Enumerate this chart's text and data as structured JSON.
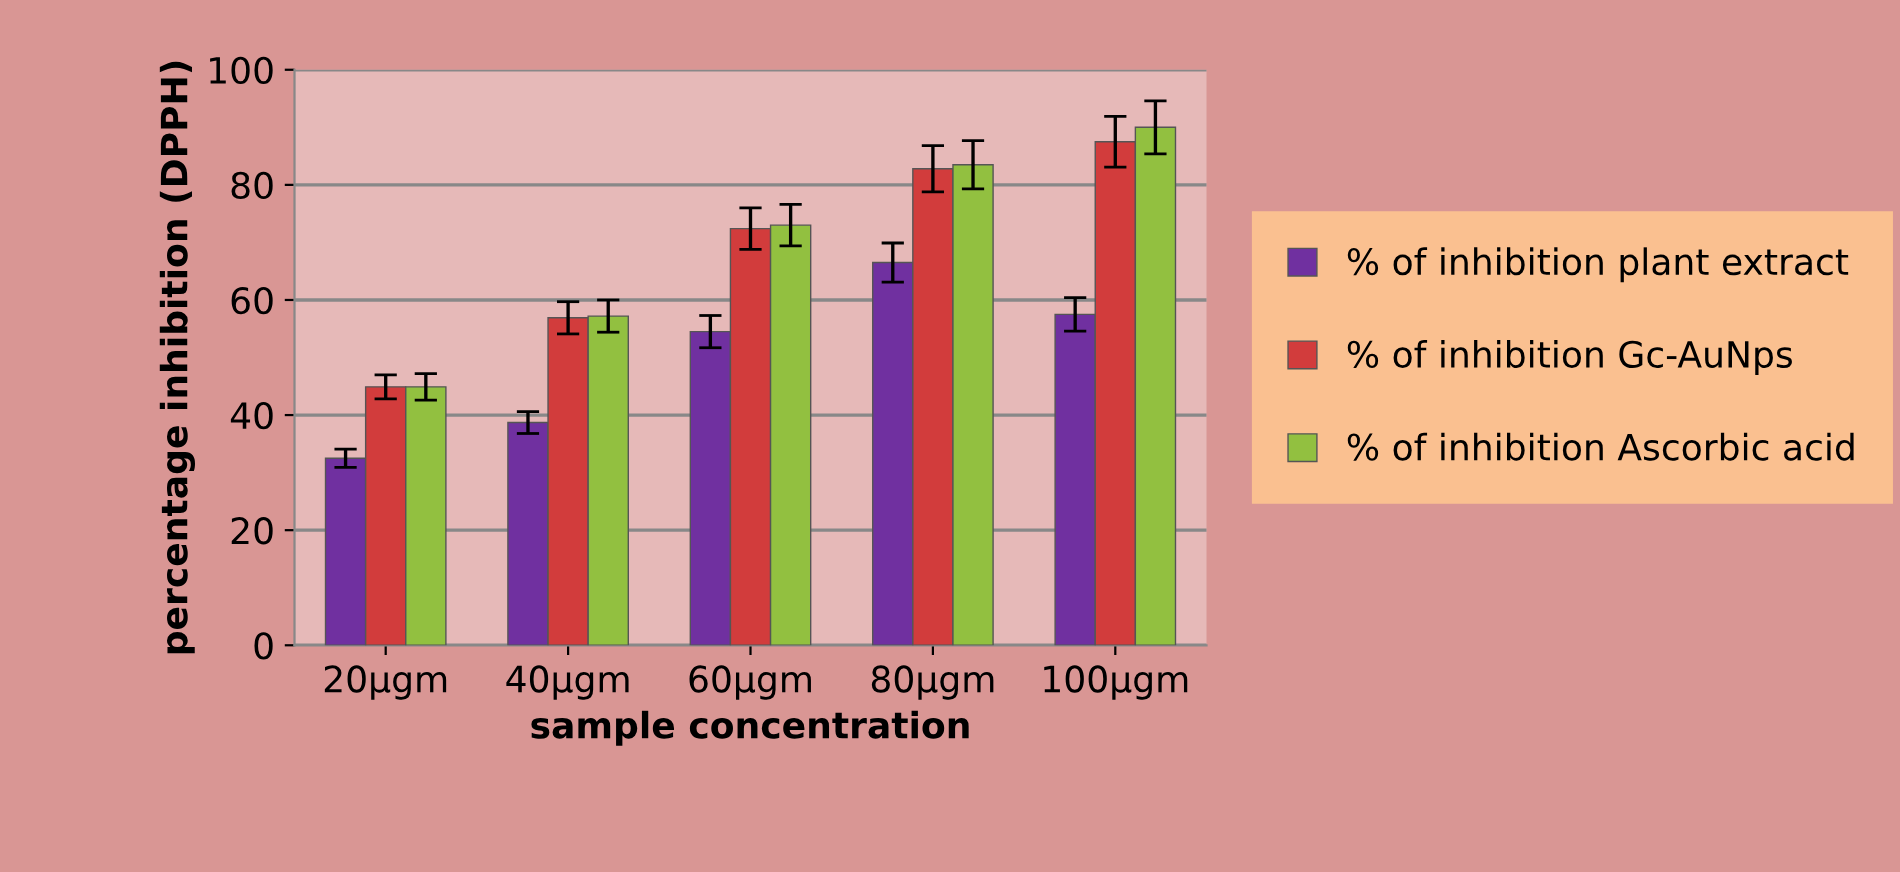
{
  "chart_data": {
    "type": "bar",
    "xlabel": "sample concentration",
    "ylabel": "percentage inhibition (DPPH)",
    "categories": [
      "20µgm",
      "40µgm",
      "60µgm",
      "80µgm",
      "100µgm"
    ],
    "series": [
      {
        "name": "% of inhibition plant extract",
        "color": "#7030a0",
        "values": [
          32.5,
          38.7,
          54.5,
          66.5,
          57.5
        ],
        "errors": [
          1.6,
          1.9,
          2.8,
          3.4,
          2.9
        ]
      },
      {
        "name": "% of inhibition Gc-AuNps",
        "color": "#d23c3c",
        "values": [
          44.9,
          56.9,
          72.4,
          82.8,
          87.5
        ],
        "errors": [
          2.1,
          2.8,
          3.6,
          4.0,
          4.4
        ]
      },
      {
        "name": "% of inhibition Ascorbic acid",
        "color": "#92c040",
        "values": [
          44.9,
          57.2,
          73.0,
          83.5,
          90.0
        ],
        "errors": [
          2.3,
          2.8,
          3.6,
          4.2,
          4.6
        ]
      }
    ],
    "ylim": [
      0,
      100
    ],
    "yticks": [
      0,
      20,
      40,
      60,
      80,
      100
    ],
    "grid": "y",
    "legend": "right"
  }
}
